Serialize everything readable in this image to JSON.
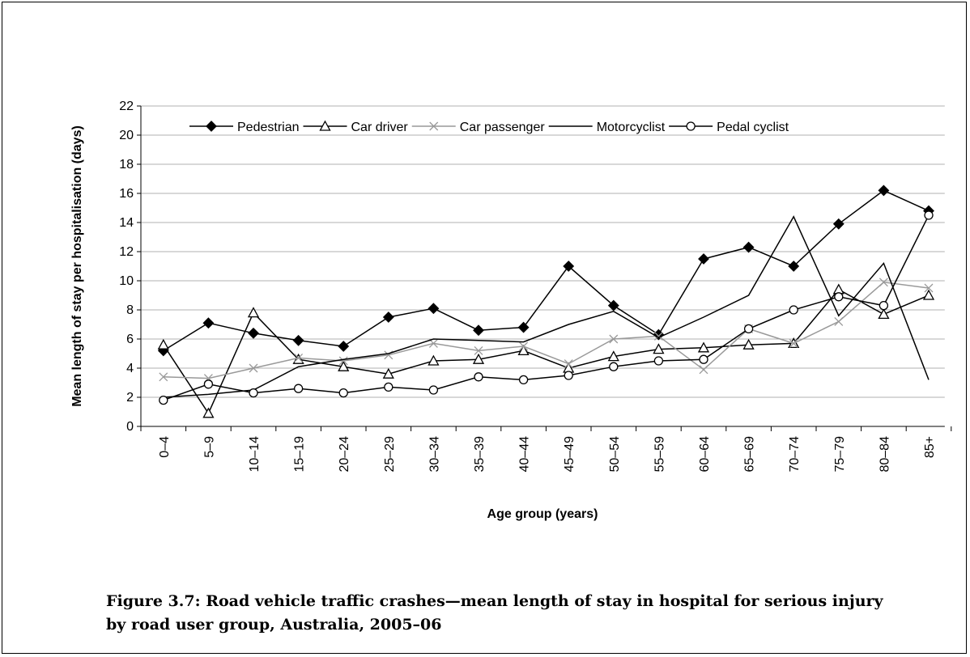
{
  "chart_data": {
    "type": "line",
    "y_label": "Mean length of stay per hospitalisation (days)",
    "x_label": "Age group (years)",
    "caption": "Figure 3.7: Road vehicle traffic crashes—mean length of stay in hospital for serious injury by road user group, Australia, 2005–06",
    "categories": [
      "0–4",
      "5–9",
      "10–14",
      "15–19",
      "20–24",
      "25–29",
      "30–34",
      "35–39",
      "40–44",
      "45–49",
      "50–54",
      "55–59",
      "60–64",
      "65–69",
      "70–74",
      "75–79",
      "80–84",
      "85+"
    ],
    "ylim": [
      0,
      22
    ],
    "yticks": [
      0,
      2,
      4,
      6,
      8,
      10,
      12,
      14,
      16,
      18,
      20,
      22
    ],
    "grid": true,
    "legend": "top",
    "series": [
      {
        "name": "Pedestrian",
        "color": "#000000",
        "marker": "diamond",
        "values": [
          5.2,
          7.1,
          6.4,
          5.9,
          5.5,
          7.5,
          8.1,
          6.6,
          6.8,
          11.0,
          8.3,
          6.3,
          11.5,
          12.3,
          11.0,
          13.9,
          16.2,
          14.8
        ]
      },
      {
        "name": "Car driver",
        "color": "#000000",
        "marker": "triangle",
        "values": [
          5.6,
          0.9,
          7.8,
          4.6,
          4.1,
          3.6,
          4.5,
          4.6,
          5.2,
          4.0,
          4.8,
          5.3,
          5.4,
          5.6,
          5.7,
          9.4,
          7.7,
          9.0
        ]
      },
      {
        "name": "Car passenger",
        "color": "#999999",
        "marker": "x",
        "values": [
          3.4,
          3.3,
          4.0,
          4.7,
          4.5,
          4.9,
          5.7,
          5.2,
          5.5,
          4.3,
          6.0,
          6.2,
          3.9,
          6.7,
          5.7,
          7.2,
          9.9,
          9.5
        ]
      },
      {
        "name": "Motorcyclist",
        "color": "#000000",
        "marker": "none",
        "values": [
          2.0,
          2.2,
          2.5,
          4.1,
          4.6,
          5.0,
          6.0,
          5.9,
          5.8,
          7.0,
          7.9,
          6.1,
          7.5,
          9.0,
          14.4,
          7.6,
          11.2,
          3.2
        ]
      },
      {
        "name": "Pedal cyclist",
        "color": "#000000",
        "marker": "circle",
        "values": [
          1.8,
          2.9,
          2.3,
          2.6,
          2.3,
          2.7,
          2.5,
          3.4,
          3.2,
          3.5,
          4.1,
          4.5,
          4.6,
          6.7,
          8.0,
          8.9,
          8.3,
          14.5
        ]
      }
    ]
  }
}
